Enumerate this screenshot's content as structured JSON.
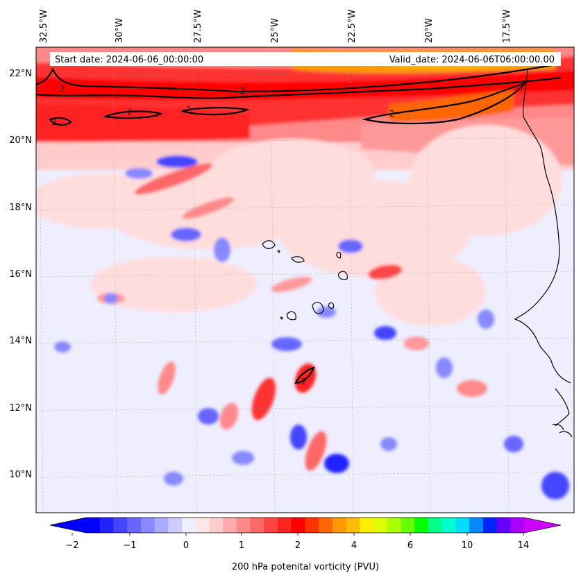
{
  "header": {
    "start_label": "Start date: 2024-06-06_00:00:00",
    "valid_label": "Valid_date: 2024-06-06T06:00:00.00"
  },
  "map": {
    "lon_labels": [
      "32.5°W",
      "30°W",
      "27.5°W",
      "25°W",
      "22.5°W",
      "20°W",
      "17.5°W"
    ],
    "lat_labels": [
      "22°N",
      "20°N",
      "18°N",
      "16°N",
      "14°N",
      "12°N",
      "10°N"
    ],
    "contour_level_label": "2",
    "coast_color": "#000000"
  },
  "colorbar": {
    "label": "200 hPa potenital vorticity (PVU)",
    "tick_labels": [
      "−2",
      "−1",
      "0",
      "1",
      "2",
      "4",
      "6",
      "10",
      "14"
    ],
    "colors": [
      "#0000ff",
      "#2222ff",
      "#4444ff",
      "#6666ff",
      "#8888ff",
      "#aaaaff",
      "#ccccff",
      "#eeeeff",
      "#ffe6e6",
      "#ffcccc",
      "#ffaaaa",
      "#ff8888",
      "#ff6666",
      "#ff4444",
      "#ff2222",
      "#ff0000",
      "#ff3300",
      "#ff6600",
      "#ff9900",
      "#ffbb00",
      "#ffee00",
      "#ddff00",
      "#aaff00",
      "#66ff00",
      "#00ff00",
      "#00ff88",
      "#00ffcc",
      "#00ddff",
      "#0088ff",
      "#0022ff",
      "#6600ff",
      "#aa00ff"
    ],
    "under_color": "#0000ff",
    "over_color": "#cc00ff"
  }
}
